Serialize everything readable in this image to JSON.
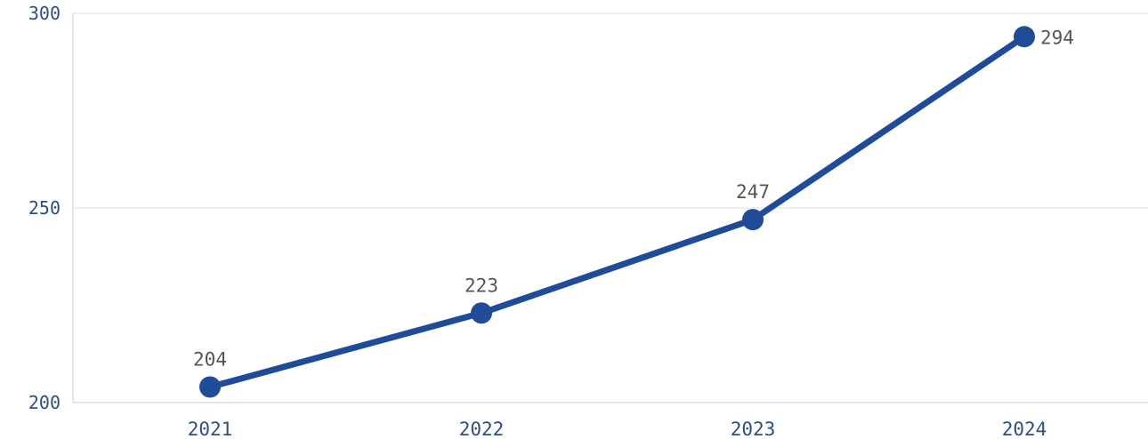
{
  "chart_data": {
    "type": "line",
    "categories": [
      "2021",
      "2022",
      "2023",
      "2024"
    ],
    "series": [
      {
        "values": [
          204,
          223,
          247,
          294
        ]
      }
    ],
    "ylim": [
      200,
      300
    ],
    "yticks": [
      200,
      250,
      300
    ],
    "grid": true,
    "legend": "none",
    "data_labels": [
      "204",
      "223",
      "247",
      "294"
    ],
    "colors": {
      "line": "#1f4b99",
      "marker": "#1f4b99",
      "tick_text": "#2f4f7f",
      "data_label_text": "#555555",
      "grid": "#e6e6e6",
      "axis": "#d8d8d8"
    }
  }
}
